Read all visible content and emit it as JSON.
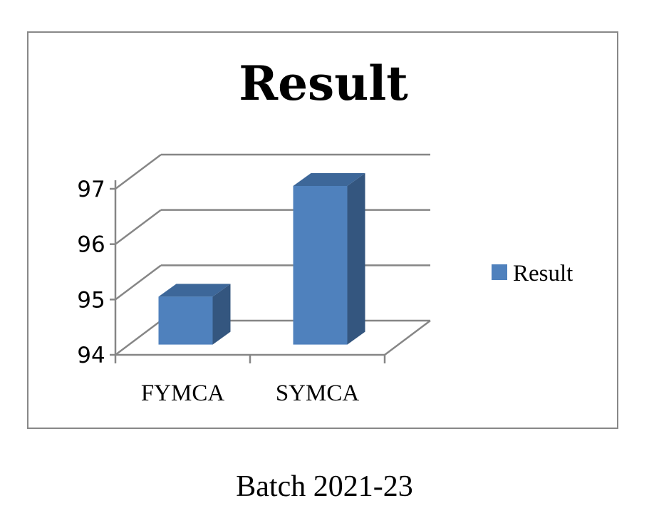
{
  "chart_data": {
    "type": "bar",
    "title": "Result",
    "categories": [
      "FYMCA",
      "SYMCA"
    ],
    "series": [
      {
        "name": "Result",
        "values": [
          95,
          97
        ]
      }
    ],
    "ylim": [
      94,
      97
    ],
    "yticks": [
      "94",
      "95",
      "96",
      "97"
    ],
    "grid": true,
    "legend": "right",
    "three_d": true,
    "colors": {
      "bar_front": "#4f81bd",
      "bar_top": "#3d6799",
      "bar_side": "#34567f",
      "grid": "#868686"
    }
  },
  "caption": "Batch 2021-23"
}
